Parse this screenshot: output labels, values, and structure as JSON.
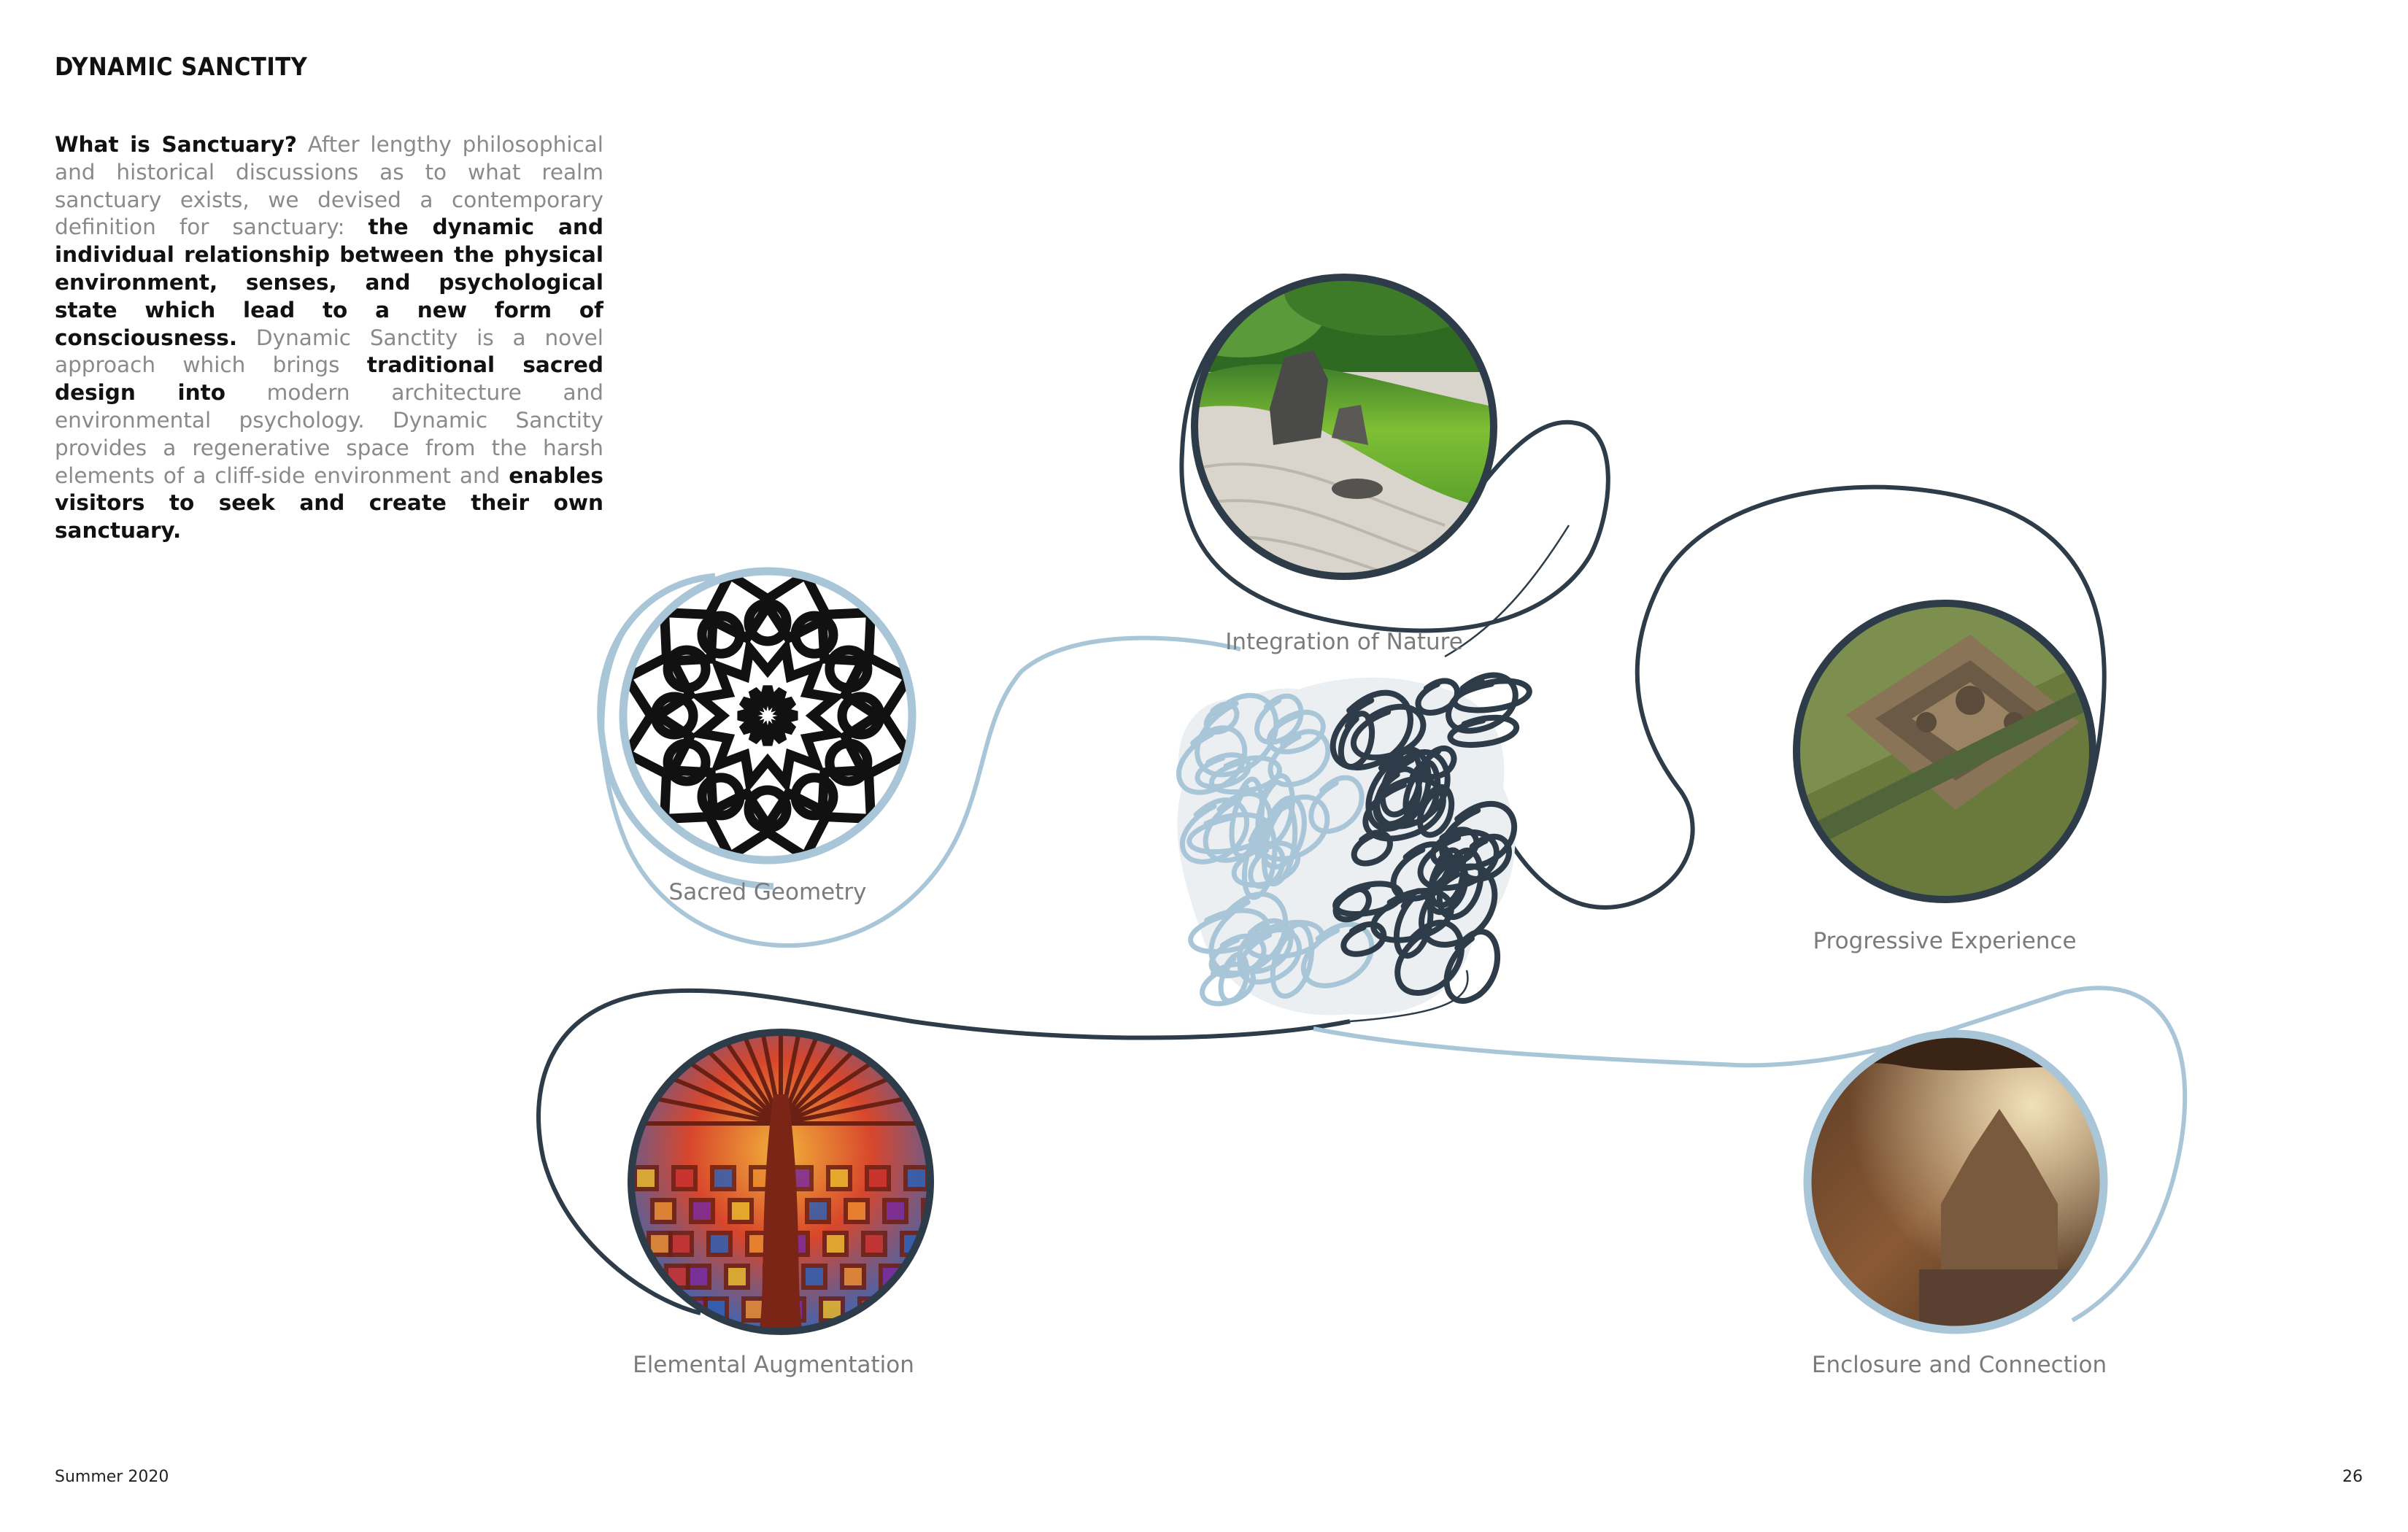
{
  "page": {
    "title": "DYNAMIC SANCTITY",
    "intro": [
      {
        "text": "What is Sanctuary?",
        "bold": true
      },
      {
        "text": " After lengthy philosophical and historical discussions as to what realm sanctuary exists, we devised a contemporary definition for sanctuary: ",
        "bold": false
      },
      {
        "text": "the dynamic and individual relationship between the physical environment, senses, and psychological state which lead to a new form of consciousness.",
        "bold": true
      },
      {
        "text": " Dynamic Sanctity is a novel approach which brings ",
        "bold": false
      },
      {
        "text": "traditional sacred design into",
        "bold": true
      },
      {
        "text": " modern architecture and environmental psychology. Dynamic Sanctity provides a regenerative space from the harsh elements of a cliff-side environment and ",
        "bold": false
      },
      {
        "text": "enables visitors to seek and create their own sanctuary.",
        "bold": true
      }
    ],
    "footer_left": "Summer 2020",
    "page_number": "26"
  },
  "diagram": {
    "nodes": [
      {
        "id": "sacred-geometry",
        "label": "Sacred Geometry",
        "image": "islamic-geometric-star-pattern",
        "ring_color": "#a9c6d8"
      },
      {
        "id": "integration-of-nature",
        "label": "Integration of Nature",
        "image": "zen-rock-garden",
        "ring_color": "#2d3c48"
      },
      {
        "id": "progressive-experience",
        "label": "Progressive Experience",
        "image": "angkor-wat-aerial",
        "ring_color": "#2d3c48"
      },
      {
        "id": "elemental-augmentation",
        "label": "Elemental Augmentation",
        "image": "stained-glass-dome",
        "ring_color": "#2d3c48"
      },
      {
        "id": "enclosure-and-connection",
        "label": "Enclosure and Connection",
        "image": "cave-temple",
        "ring_color": "#a9c6d8"
      }
    ],
    "center": {
      "image": "brain-scribble"
    },
    "colors": {
      "light_line": "#a9c6d8",
      "dark_line": "#2d3c48",
      "label": "#7b7b7b"
    }
  }
}
